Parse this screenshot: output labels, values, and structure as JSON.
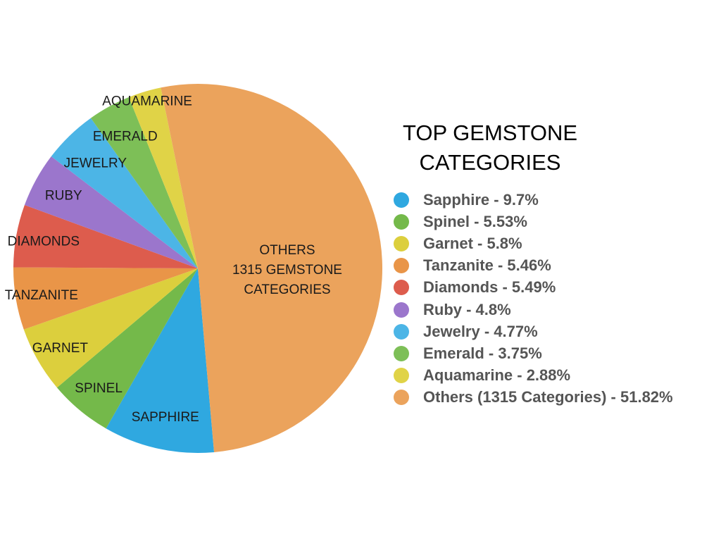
{
  "chart_data": {
    "type": "pie",
    "title_lines": [
      "TOP GEMSTONE",
      "CATEGORIES"
    ],
    "legend_position": "right",
    "slices": [
      {
        "label": "SAPPHIRE",
        "legend": "Sapphire - 9.7%",
        "value": 9.7,
        "color": "#2fa8e0"
      },
      {
        "label": "SPINEL",
        "legend": "Spinel - 5.53%",
        "value": 5.53,
        "color": "#74b94a"
      },
      {
        "label": "GARNET",
        "legend": "Garnet - 5.8%",
        "value": 5.8,
        "color": "#dccf3d"
      },
      {
        "label": "TANZANITE",
        "legend": "Tanzanite - 5.46%",
        "value": 5.46,
        "color": "#e99548"
      },
      {
        "label": "DIAMONDS",
        "legend": "Diamonds - 5.49%",
        "value": 5.49,
        "color": "#dd5c4d"
      },
      {
        "label": "RUBY",
        "legend": "Ruby - 4.8%",
        "value": 4.8,
        "color": "#9b76cc"
      },
      {
        "label": "JEWELRY",
        "legend": "Jewelry - 4.77%",
        "value": 4.77,
        "color": "#4cb5e6"
      },
      {
        "label": "EMERALD",
        "legend": "Emerald - 3.75%",
        "value": 3.75,
        "color": "#7dbf57"
      },
      {
        "label": "AQUAMARINE",
        "legend": "Aquamarine - 2.88%",
        "value": 2.88,
        "color": "#e0d347"
      },
      {
        "label": "OTHERS\n1315 GEMSTONE\nCATEGORIES",
        "legend": "Others (1315 Categories) - 51.82%",
        "value": 51.82,
        "color": "#eba35c"
      }
    ]
  }
}
